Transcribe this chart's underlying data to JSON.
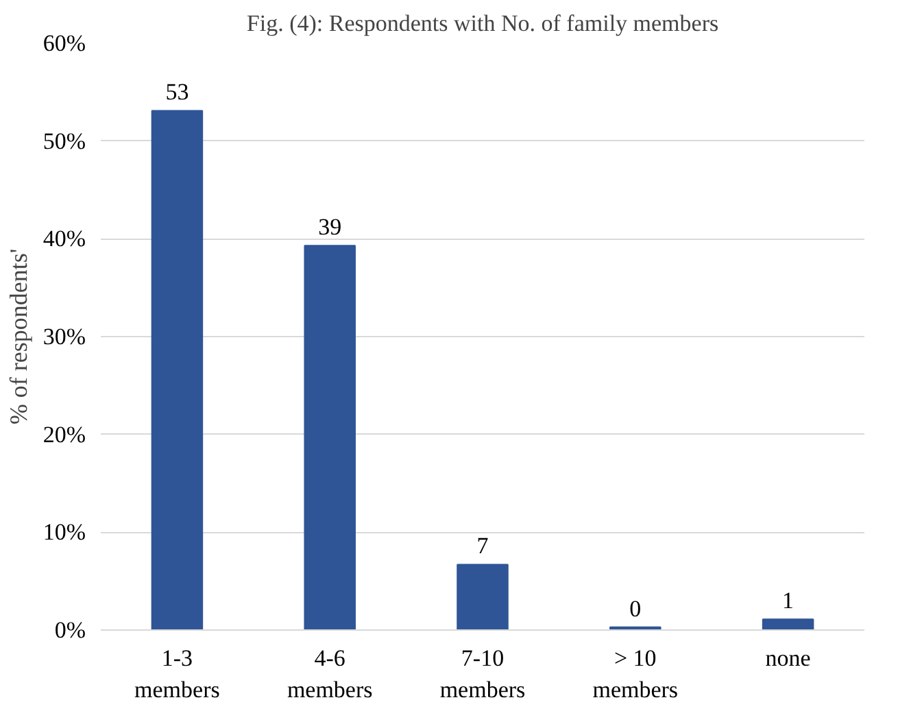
{
  "chart_data": {
    "type": "bar",
    "title": "Fig. (4): Respondents with No. of family members",
    "ylabel": "% of respondents'",
    "categories": [
      "1-3\nmembers",
      "4-6\nmembers",
      "7-10\nmembers",
      "> 10\nmembers",
      "none"
    ],
    "values": [
      53.1,
      39.3,
      6.7,
      0.3,
      1.1
    ],
    "value_labels": [
      "53",
      "39",
      "7",
      "0",
      "1"
    ],
    "color": "#2f5597",
    "ylim": [
      0,
      60
    ],
    "yticks": [
      {
        "value": 0,
        "label": "0%"
      },
      {
        "value": 10,
        "label": "10%"
      },
      {
        "value": 20,
        "label": "20%"
      },
      {
        "value": 30,
        "label": "30%"
      },
      {
        "value": 40,
        "label": "40%"
      },
      {
        "value": 50,
        "label": "50%"
      },
      {
        "value": 60,
        "label": "60%"
      }
    ],
    "grid": "y"
  }
}
